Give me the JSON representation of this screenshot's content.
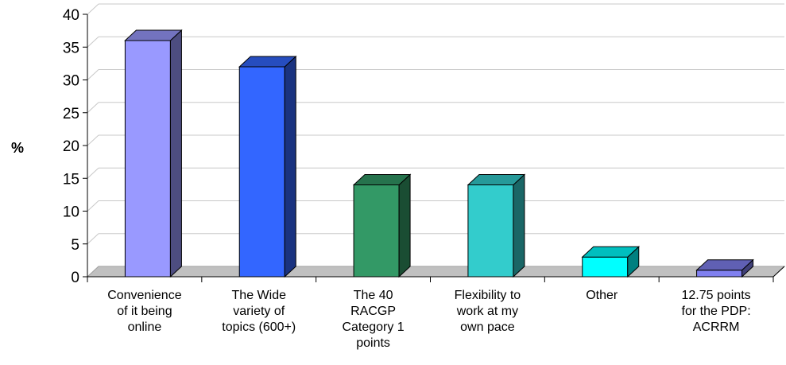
{
  "chart_data": {
    "type": "bar",
    "title": "",
    "xlabel": "",
    "ylabel": "%",
    "ylim": [
      0,
      40
    ],
    "ytick_step": 5,
    "yticks": [
      "0",
      "5",
      "10",
      "15",
      "20",
      "25",
      "30",
      "35",
      "40"
    ],
    "grid": true,
    "legend": "none",
    "categories": [
      [
        "Convenience",
        "of it being",
        "online"
      ],
      [
        "The Wide",
        "variety of",
        "topics (600+)"
      ],
      [
        "The 40",
        "RACGP",
        "Category 1",
        "points"
      ],
      [
        "Flexibility to",
        "work at my",
        "own pace"
      ],
      [
        "Other"
      ],
      [
        "12.75 points",
        "for the PDP:",
        "ACRRM"
      ]
    ],
    "values": [
      36,
      32,
      14,
      14,
      3,
      1
    ],
    "colors": [
      "#9999FF",
      "#3366FF",
      "#339966",
      "#33CCCC",
      "#00FFFF",
      "#8080F0"
    ]
  }
}
